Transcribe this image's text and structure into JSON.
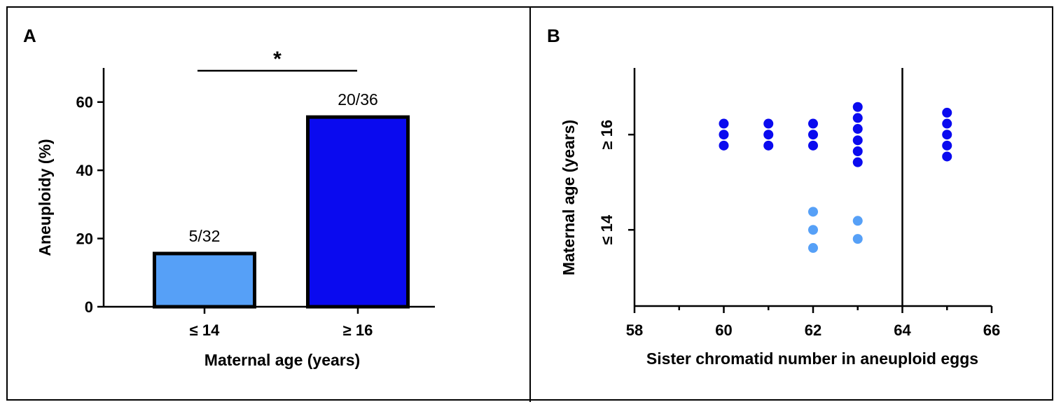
{
  "chart_data": [
    {
      "panel_label": "A",
      "type": "bar",
      "categories": [
        "≤ 14",
        "≥ 16"
      ],
      "values": [
        15.6,
        55.6
      ],
      "bar_labels": [
        "5/32",
        "20/36"
      ],
      "bar_colors": [
        "#56a0f7",
        "#0a0aef"
      ],
      "xlabel": "Maternal age (years)",
      "ylabel": "Aneuploidy (%)",
      "ylim": [
        0,
        70
      ],
      "yticks": [
        0,
        20,
        40,
        60
      ],
      "significance": "*",
      "grid": false
    },
    {
      "panel_label": "B",
      "type": "scatter",
      "xlabel": "Sister chromatid number in aneuploid eggs",
      "ylabel": "Maternal age (years)",
      "xlim": [
        58,
        66
      ],
      "xticks": [
        58,
        60,
        62,
        64,
        66
      ],
      "ylim": [
        12.4,
        17.4
      ],
      "yticks": [
        14,
        16
      ],
      "ytick_labels": [
        "≤ 14",
        "≥ 16"
      ],
      "reference_line_x": 64,
      "grid": false,
      "series": [
        {
          "group": "≥ 16",
          "color": "#0a0aef",
          "points": [
            {
              "x": 60,
              "y": 16.23
            },
            {
              "x": 60,
              "y": 16
            },
            {
              "x": 60,
              "y": 15.77
            },
            {
              "x": 61,
              "y": 16.23
            },
            {
              "x": 61,
              "y": 16
            },
            {
              "x": 61,
              "y": 15.77
            },
            {
              "x": 62,
              "y": 16.23
            },
            {
              "x": 62,
              "y": 16
            },
            {
              "x": 62,
              "y": 15.77
            },
            {
              "x": 63,
              "y": 16.58
            },
            {
              "x": 63,
              "y": 16.35
            },
            {
              "x": 63,
              "y": 16.12
            },
            {
              "x": 63,
              "y": 15.88
            },
            {
              "x": 63,
              "y": 15.65
            },
            {
              "x": 63,
              "y": 15.42
            },
            {
              "x": 65,
              "y": 16.46
            },
            {
              "x": 65,
              "y": 16.23
            },
            {
              "x": 65,
              "y": 16
            },
            {
              "x": 65,
              "y": 15.77
            },
            {
              "x": 65,
              "y": 15.54
            }
          ]
        },
        {
          "group": "≤ 14",
          "color": "#56a0f7",
          "points": [
            {
              "x": 62,
              "y": 14.38
            },
            {
              "x": 62,
              "y": 14
            },
            {
              "x": 62,
              "y": 13.62
            },
            {
              "x": 63,
              "y": 14.19
            },
            {
              "x": 63,
              "y": 13.81
            }
          ]
        }
      ]
    }
  ]
}
